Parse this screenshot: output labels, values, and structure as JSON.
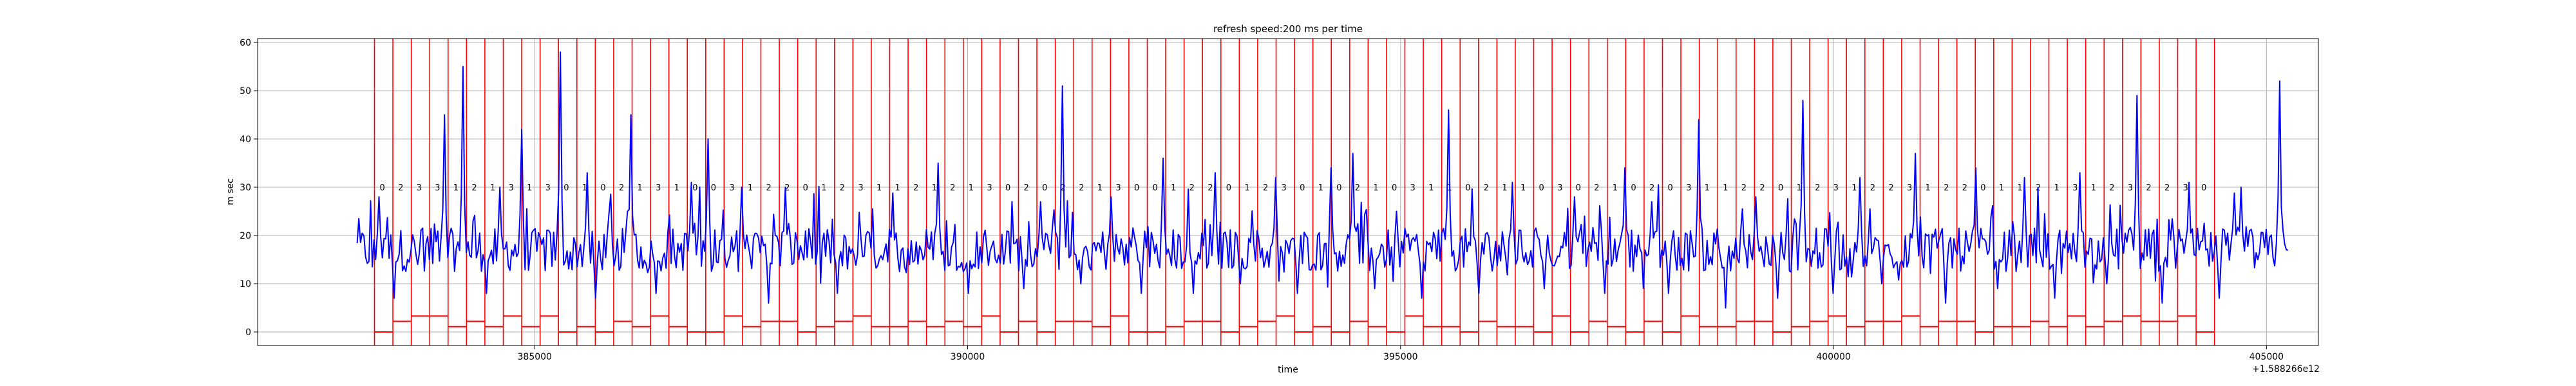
{
  "chart_data": {
    "type": "line",
    "title": "refresh speed:200 ms per time",
    "xlabel": "time",
    "ylabel": "m sec",
    "offset_label": "+1.588266e12",
    "xlim": [
      381800,
      405600
    ],
    "ylim": [
      -2.8,
      60.8
    ],
    "xticks": [
      385000,
      390000,
      395000,
      400000,
      405000
    ],
    "xtick_labels": [
      "385000",
      "390000",
      "395000",
      "400000",
      "405000"
    ],
    "yticks": [
      0,
      10,
      20,
      30,
      40,
      50,
      60
    ],
    "ytick_labels": [
      "0",
      "10",
      "20",
      "30",
      "40",
      "50",
      "60"
    ],
    "grid": true,
    "legend": "none",
    "line_color": "#0000ff",
    "marker_color": "#ff0000",
    "series": [
      {
        "x_start": 382950,
        "x_end": 405250,
        "peaks": [
          {
            "x": 383200,
            "y": 28
          },
          {
            "x": 383380,
            "y": 7
          },
          {
            "x": 383650,
            "y": 14
          },
          {
            "x": 383950,
            "y": 45
          },
          {
            "x": 384180,
            "y": 55
          },
          {
            "x": 384450,
            "y": 8
          },
          {
            "x": 384600,
            "y": 30
          },
          {
            "x": 384850,
            "y": 42
          },
          {
            "x": 385300,
            "y": 58
          },
          {
            "x": 385600,
            "y": 33
          },
          {
            "x": 385700,
            "y": 7
          },
          {
            "x": 386120,
            "y": 45
          },
          {
            "x": 386400,
            "y": 8
          },
          {
            "x": 386800,
            "y": 31
          },
          {
            "x": 387000,
            "y": 40
          },
          {
            "x": 387400,
            "y": 30
          },
          {
            "x": 387700,
            "y": 6
          },
          {
            "x": 387900,
            "y": 30
          },
          {
            "x": 388500,
            "y": 8
          },
          {
            "x": 389650,
            "y": 35
          },
          {
            "x": 390000,
            "y": 8
          },
          {
            "x": 390650,
            "y": 9
          },
          {
            "x": 390850,
            "y": 27
          },
          {
            "x": 391100,
            "y": 51
          },
          {
            "x": 391300,
            "y": 10
          },
          {
            "x": 391650,
            "y": 28
          },
          {
            "x": 392000,
            "y": 8
          },
          {
            "x": 392250,
            "y": 36
          },
          {
            "x": 392600,
            "y": 8
          },
          {
            "x": 392850,
            "y": 33
          },
          {
            "x": 393150,
            "y": 10
          },
          {
            "x": 393550,
            "y": 32
          },
          {
            "x": 393800,
            "y": 8
          },
          {
            "x": 394200,
            "y": 34
          },
          {
            "x": 394450,
            "y": 37
          },
          {
            "x": 394700,
            "y": 9
          },
          {
            "x": 394950,
            "y": 25
          },
          {
            "x": 395250,
            "y": 7
          },
          {
            "x": 395560,
            "y": 46
          },
          {
            "x": 395900,
            "y": 8
          },
          {
            "x": 396300,
            "y": 31
          },
          {
            "x": 396650,
            "y": 9
          },
          {
            "x": 397000,
            "y": 28
          },
          {
            "x": 397350,
            "y": 8
          },
          {
            "x": 397600,
            "y": 34
          },
          {
            "x": 397900,
            "y": 27
          },
          {
            "x": 398100,
            "y": 8
          },
          {
            "x": 398450,
            "y": 44
          },
          {
            "x": 398750,
            "y": 5
          },
          {
            "x": 399100,
            "y": 28
          },
          {
            "x": 399350,
            "y": 7
          },
          {
            "x": 399650,
            "y": 48
          },
          {
            "x": 400000,
            "y": 8
          },
          {
            "x": 400300,
            "y": 32
          },
          {
            "x": 400550,
            "y": 10
          },
          {
            "x": 400950,
            "y": 37
          },
          {
            "x": 401300,
            "y": 6
          },
          {
            "x": 401650,
            "y": 34
          },
          {
            "x": 401900,
            "y": 9
          },
          {
            "x": 402200,
            "y": 32
          },
          {
            "x": 402550,
            "y": 7
          },
          {
            "x": 402850,
            "y": 33
          },
          {
            "x": 403150,
            "y": 10
          },
          {
            "x": 403500,
            "y": 49
          },
          {
            "x": 403800,
            "y": 6
          },
          {
            "x": 404100,
            "y": 31
          },
          {
            "x": 404450,
            "y": 7
          },
          {
            "x": 404700,
            "y": 30
          },
          {
            "x": 404900,
            "y": 15
          },
          {
            "x": 405150,
            "y": 52
          },
          {
            "x": 405250,
            "y": 17
          }
        ]
      }
    ],
    "markers": {
      "x_start": 383150,
      "x_end": 404400,
      "count": 100,
      "line_top": 60.8,
      "label_y": 30,
      "step_scale": 1.1,
      "labels": [
        "0",
        "2",
        "3",
        "3",
        "1",
        "2",
        "1",
        "3",
        "1",
        "3",
        "0",
        "1",
        "0",
        "2",
        "1",
        "3",
        "1",
        "0",
        "0",
        "3",
        "1",
        "2",
        "2",
        "0",
        "1",
        "2",
        "3",
        "1",
        "1",
        "2",
        "1",
        "2",
        "1",
        "3",
        "0",
        "2",
        "0",
        "2",
        "2",
        "1",
        "3",
        "0",
        "0",
        "1",
        "2",
        "2",
        "0",
        "1",
        "2",
        "3",
        "0",
        "1",
        "0",
        "2",
        "1",
        "0",
        "3",
        "1",
        "1",
        "0",
        "2",
        "1",
        "1",
        "0",
        "3",
        "0",
        "2",
        "1",
        "0",
        "2",
        "0",
        "3",
        "1",
        "1",
        "2",
        "2",
        "0",
        "1",
        "2",
        "3",
        "1",
        "2",
        "2",
        "3",
        "1",
        "2",
        "2",
        "0",
        "1",
        "1",
        "2",
        "1",
        "3",
        "1",
        "2",
        "3",
        "2",
        "2",
        "3",
        "0"
      ]
    }
  }
}
